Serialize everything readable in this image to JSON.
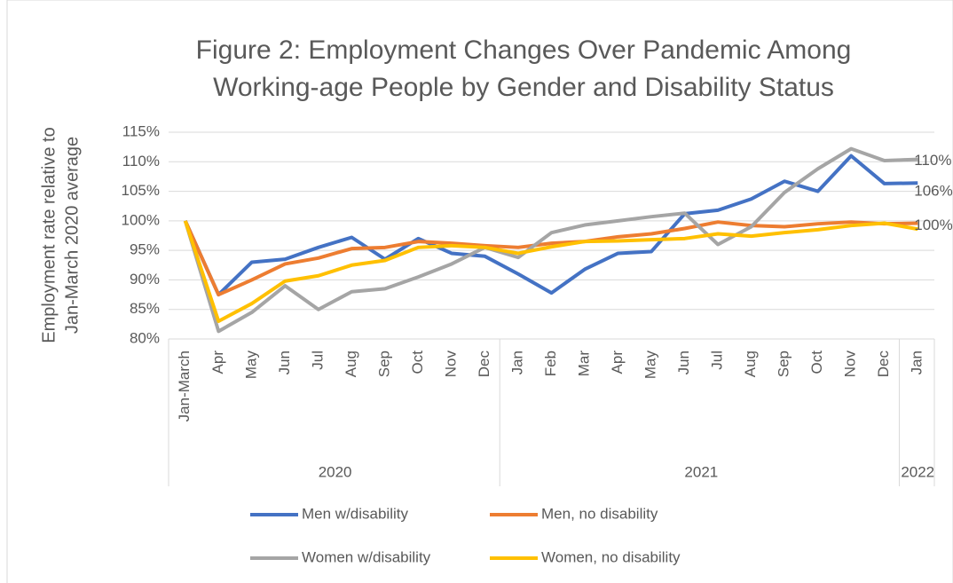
{
  "chart_data": {
    "type": "line",
    "title": [
      "Figure 2: Employment Changes Over Pandemic Among",
      "Working-age People by Gender and Disability Status"
    ],
    "y_label": [
      "Employment rate relative to",
      "Jan-March 2020 average"
    ],
    "groups": [
      {
        "name": "2020",
        "categories": [
          "Jan-March",
          "Apr",
          "May",
          "Jun",
          "Jul",
          "Aug",
          "Sep",
          "Oct",
          "Nov",
          "Dec"
        ]
      },
      {
        "name": "2021",
        "categories": [
          "Jan",
          "Feb",
          "Mar",
          "Apr",
          "May",
          "Jun",
          "Jul",
          "Aug",
          "Sep",
          "Oct",
          "Nov",
          "Dec"
        ]
      },
      {
        "name": "2022",
        "categories": [
          "Jan"
        ]
      }
    ],
    "series": [
      {
        "name": "Men w/disability",
        "color": "#4472c4",
        "values": [
          100,
          87.5,
          93,
          93.5,
          95.5,
          97.2,
          93.5,
          97,
          94.5,
          94,
          91,
          87.8,
          91.8,
          94.5,
          94.8,
          101.2,
          101.8,
          103.7,
          106.7,
          105,
          111,
          106.3,
          106.4
        ],
        "value_labels": [
          null,
          null,
          null,
          null,
          null,
          null,
          null,
          null,
          null,
          null,
          null,
          null,
          null,
          null,
          null,
          null,
          null,
          null,
          null,
          null,
          null,
          null,
          "106%"
        ]
      },
      {
        "name": "Men, no disability",
        "color": "#ed7d31",
        "values": [
          100,
          87.5,
          90,
          92.7,
          93.7,
          95.3,
          95.5,
          96.5,
          96.2,
          95.8,
          95.5,
          96.2,
          96.5,
          97.3,
          97.8,
          98.7,
          99.8,
          99.2,
          99,
          99.5,
          99.8,
          99.5,
          99.6
        ],
        "value_labels": [
          null,
          null,
          null,
          null,
          null,
          null,
          null,
          null,
          null,
          null,
          null,
          null,
          null,
          null,
          null,
          null,
          null,
          null,
          null,
          null,
          null,
          null,
          "100%"
        ]
      },
      {
        "name": "Women w/disability",
        "color": "#a5a5a5",
        "values": [
          100,
          81.3,
          84.5,
          89,
          85,
          88,
          88.5,
          90.5,
          92.7,
          95.5,
          93.8,
          98,
          99.3,
          100,
          100.7,
          101.3,
          96,
          99,
          104.8,
          108.8,
          112.2,
          110.2,
          110.4
        ],
        "value_labels": [
          null,
          null,
          null,
          null,
          null,
          null,
          null,
          null,
          null,
          null,
          null,
          null,
          null,
          null,
          null,
          null,
          null,
          null,
          null,
          null,
          null,
          null,
          "110%"
        ]
      },
      {
        "name": "Women, no disability",
        "color": "#ffc000",
        "values": [
          100,
          83,
          86,
          89.8,
          90.7,
          92.5,
          93.3,
          95.5,
          95.8,
          95.5,
          94.5,
          95.6,
          96.5,
          96.6,
          96.8,
          97,
          97.8,
          97.4,
          98,
          98.5,
          99.2,
          99.6,
          98.6
        ]
      }
    ],
    "ylim": [
      80,
      115
    ],
    "yticks": [
      {
        "value": 80,
        "label": "80%"
      },
      {
        "value": 85,
        "label": "85%"
      },
      {
        "value": 90,
        "label": "90%"
      },
      {
        "value": 95,
        "label": "95%"
      },
      {
        "value": 100,
        "label": "100%"
      },
      {
        "value": 105,
        "label": "105%"
      },
      {
        "value": 110,
        "label": "110%"
      },
      {
        "value": 115,
        "label": "115%"
      }
    ],
    "grid": true,
    "legend": "bottom"
  }
}
